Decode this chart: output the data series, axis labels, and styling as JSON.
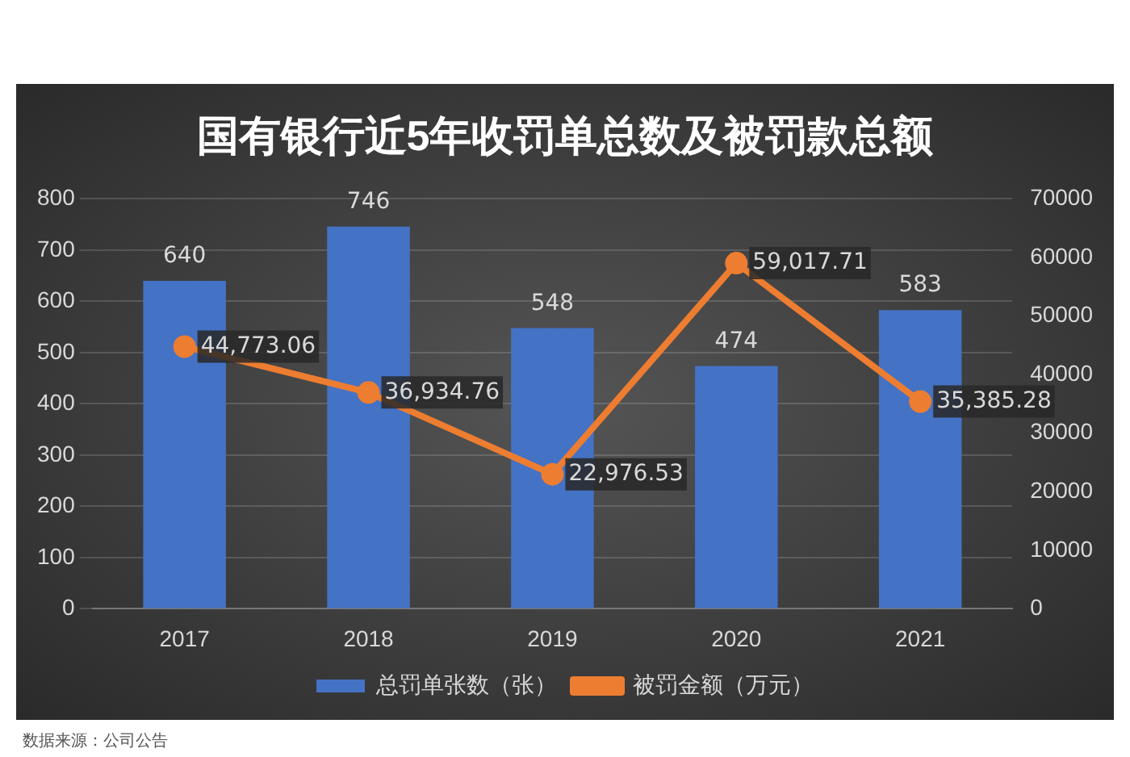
{
  "chart_data": {
    "type": "bar",
    "title": "国有银行近5年收罚单总数及被罚款总额",
    "categories": [
      "2017",
      "2018",
      "2019",
      "2020",
      "2021"
    ],
    "series": [
      {
        "name": "总罚单张数（张）",
        "color": "#4472c4",
        "values": [
          640,
          746,
          548,
          474,
          583
        ]
      },
      {
        "name": "被罚金额（万元）",
        "type": "line",
        "axis": "y2",
        "color": "#ed7d31",
        "values": [
          44773.06,
          36934.76,
          22976.53,
          59017.71,
          35385.28
        ],
        "value_labels": [
          "44,773.06",
          "36,934.76",
          "22,976.53",
          "59,017.71",
          "35,385.28"
        ]
      }
    ],
    "ylim": [
      0,
      800
    ],
    "yticks": [
      0,
      100,
      200,
      300,
      400,
      500,
      600,
      700,
      800
    ],
    "y2lim": [
      0,
      70000
    ],
    "y2ticks": [
      0,
      10000,
      20000,
      30000,
      40000,
      50000,
      60000,
      70000
    ],
    "grid": "y",
    "legend": "bottom",
    "marker": "circle",
    "data_labels": true,
    "annotations": [
      "数据来源：公司公告"
    ]
  }
}
